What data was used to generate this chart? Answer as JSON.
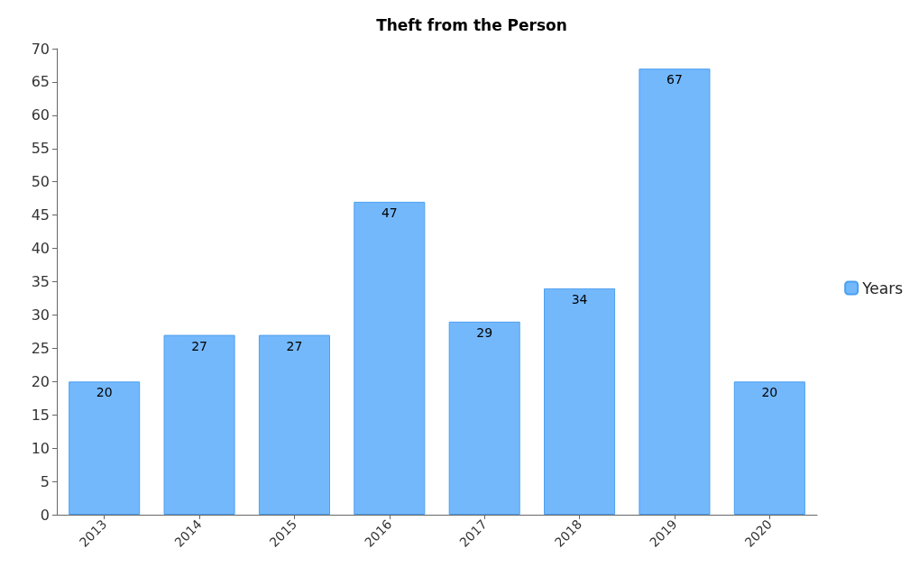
{
  "chart_data": {
    "type": "bar",
    "title": "Theft from the Person",
    "categories": [
      "2013",
      "2014",
      "2015",
      "2016",
      "2017",
      "2018",
      "2019",
      "2020"
    ],
    "series": [
      {
        "name": "Years",
        "color": "#74b8fc",
        "values": [
          20,
          27,
          27,
          47,
          29,
          34,
          67,
          20
        ]
      }
    ],
    "ylim": [
      0,
      70
    ],
    "yticks": [
      0,
      5,
      10,
      15,
      20,
      25,
      30,
      35,
      40,
      45,
      50,
      55,
      60,
      65,
      70
    ],
    "grid": false,
    "legend": "right",
    "data_labels": true
  }
}
